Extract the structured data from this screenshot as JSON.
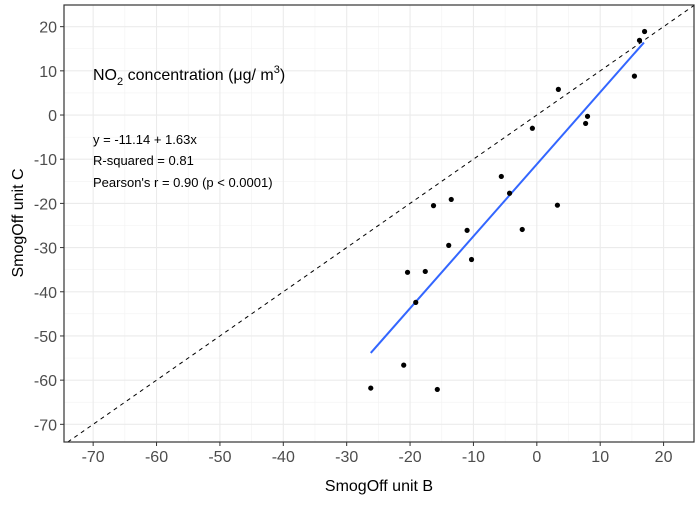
{
  "chart_data": {
    "type": "scatter",
    "xlabel": "SmogOff unit B",
    "ylabel": "SmogOff unit C",
    "xlim": [
      -74.6,
      24.8
    ],
    "ylim": [
      -74.0,
      24.9
    ],
    "xticks": [
      -70,
      -60,
      -50,
      -40,
      -30,
      -20,
      -10,
      0,
      10,
      20
    ],
    "yticks": [
      -70,
      -60,
      -50,
      -40,
      -30,
      -20,
      -10,
      0,
      10,
      20
    ],
    "grid": true,
    "points": [
      {
        "x": -16.3,
        "y": -20.5
      },
      {
        "x": -13.5,
        "y": -19.1
      },
      {
        "x": -4.3,
        "y": -17.7
      },
      {
        "x": 3.25,
        "y": -20.4
      },
      {
        "x": -11.0,
        "y": -26.1
      },
      {
        "x": -2.3,
        "y": -25.9
      },
      {
        "x": -13.9,
        "y": -29.5
      },
      {
        "x": -10.3,
        "y": -32.7
      },
      {
        "x": -20.4,
        "y": -35.6
      },
      {
        "x": -17.6,
        "y": -35.4
      },
      {
        "x": -19.1,
        "y": -42.4
      },
      {
        "x": -21.0,
        "y": -56.6
      },
      {
        "x": -26.2,
        "y": -61.8
      },
      {
        "x": -15.7,
        "y": -62.1
      },
      {
        "x": 17.0,
        "y": 18.9
      },
      {
        "x": 16.2,
        "y": 16.9
      },
      {
        "x": 15.4,
        "y": 8.8
      },
      {
        "x": 3.4,
        "y": 5.8
      },
      {
        "x": -0.7,
        "y": -3.0
      },
      {
        "x": 8.0,
        "y": -0.3
      },
      {
        "x": 7.7,
        "y": -1.9
      },
      {
        "x": -5.6,
        "y": -13.9
      }
    ],
    "fit_line": {
      "intercept": -11.14,
      "slope": 1.63,
      "x_range": [
        -26.2,
        16.9
      ],
      "color": "#3366FF"
    },
    "identity_line": {
      "slope": 1,
      "intercept": 0,
      "style": "dashed",
      "color": "#000000"
    },
    "annotation_title": {
      "prefix": "NO",
      "sub": "2",
      "middle": " concentration (μg/ m",
      "sup": "3",
      "suffix": ")"
    },
    "annotations": [
      "y = -11.14 + 1.63x",
      "R-squared = 0.81",
      "Pearson's r = 0.90 (p < 0.0001)"
    ]
  }
}
